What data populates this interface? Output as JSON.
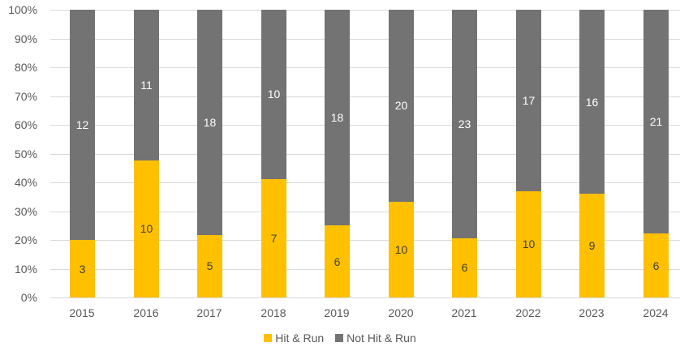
{
  "chart_data": {
    "type": "bar",
    "stacked": "percent",
    "title": "",
    "xlabel": "",
    "ylabel": "",
    "ylim": [
      0,
      100
    ],
    "yticks": [
      "0%",
      "10%",
      "20%",
      "30%",
      "40%",
      "50%",
      "60%",
      "70%",
      "80%",
      "90%",
      "100%"
    ],
    "categories": [
      "2015",
      "2016",
      "2017",
      "2018",
      "2019",
      "2020",
      "2021",
      "2022",
      "2023",
      "2024"
    ],
    "series": [
      {
        "name": "Hit & Run",
        "color": "#ffc000",
        "values": [
          3,
          10,
          5,
          7,
          6,
          10,
          6,
          10,
          9,
          6
        ]
      },
      {
        "name": "Not Hit & Run",
        "color": "#737373",
        "values": [
          12,
          11,
          18,
          10,
          18,
          20,
          23,
          17,
          16,
          21
        ]
      }
    ],
    "grid": true,
    "legend_position": "bottom"
  },
  "legend": {
    "items": [
      {
        "label": "Hit & Run",
        "color": "#ffc000"
      },
      {
        "label": "Not Hit & Run",
        "color": "#737373"
      }
    ]
  }
}
